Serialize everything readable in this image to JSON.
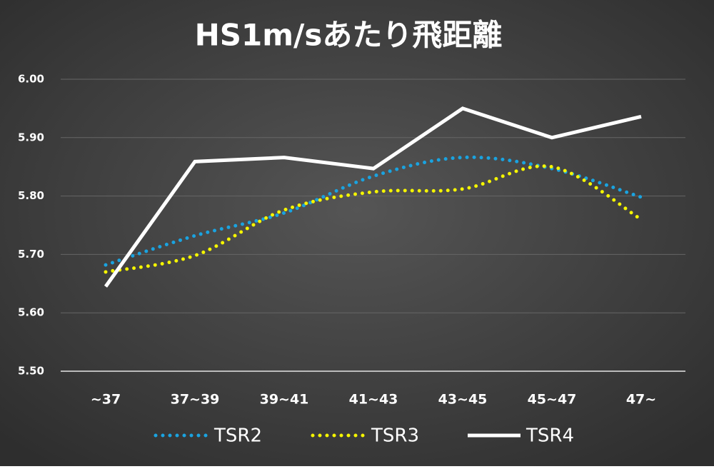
{
  "chart_data": {
    "type": "line",
    "title": "HS1m/sあたり飛距離",
    "categories": [
      "~37",
      "37~39",
      "39~41",
      "41~43",
      "43~45",
      "45~47",
      "47~"
    ],
    "series": [
      {
        "name": "TSR2",
        "color": "#1aa3e0",
        "style": "dotted",
        "smooth": true,
        "values": [
          5.682,
          5.732,
          5.771,
          5.834,
          5.866,
          5.847,
          5.798
        ]
      },
      {
        "name": "TSR3",
        "color": "#f5f500",
        "style": "dotted",
        "smooth": true,
        "values": [
          5.67,
          5.698,
          5.776,
          5.807,
          5.812,
          5.85,
          5.76
        ]
      },
      {
        "name": "TSR4",
        "color": "#ffffff",
        "style": "solid",
        "smooth": false,
        "values": [
          5.645,
          5.859,
          5.866,
          5.847,
          5.95,
          5.9,
          5.936
        ]
      }
    ],
    "ylim": [
      5.5,
      6.0
    ],
    "yticks": [
      {
        "value": 5.5,
        "label": "5.50"
      },
      {
        "value": 5.6,
        "label": "5.60"
      },
      {
        "value": 5.7,
        "label": "5.70"
      },
      {
        "value": 5.8,
        "label": "5.80"
      },
      {
        "value": 5.9,
        "label": "5.90"
      },
      {
        "value": 6.0,
        "label": "6.00"
      }
    ],
    "grid": true,
    "legend": "bottom"
  }
}
